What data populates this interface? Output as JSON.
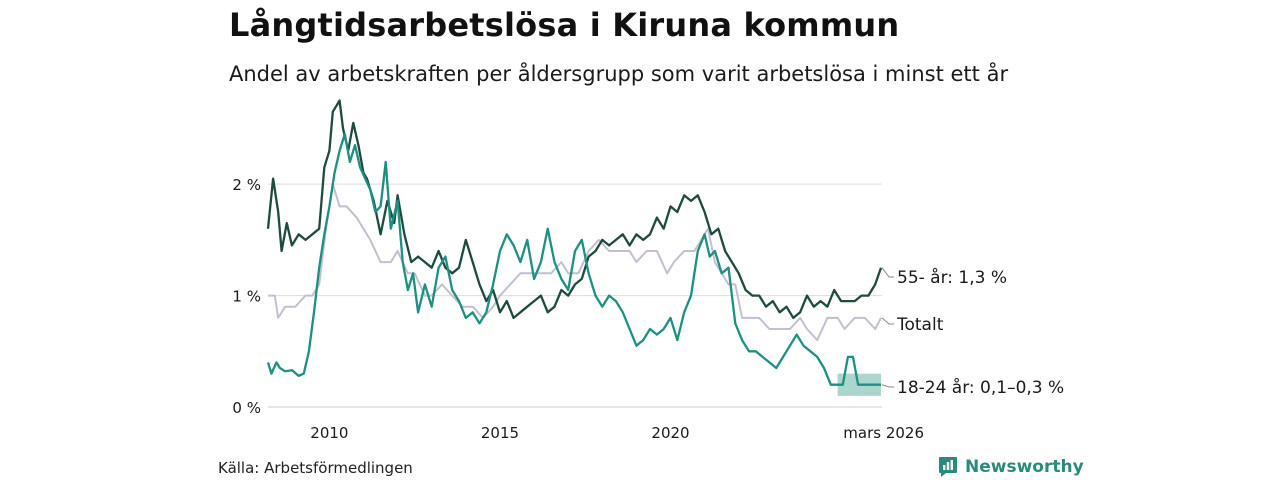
{
  "header": {
    "title": "Långtidsarbetslösa i Kiruna kommun",
    "subtitle": "Andel av arbetskraften per åldersgrupp som varit arbetslösa i minst ett år"
  },
  "footer": {
    "source": "Källa: Arbetsförmedlingen",
    "brand": "Newsworthy"
  },
  "colors": {
    "series_55": "#1f4a40",
    "series_total": "#c4bfd0",
    "series_18_24": "#1d9080",
    "band_18_24": "#9ccfc6",
    "grid": "#dddddd",
    "axis_text": "#1a1a1a",
    "brand": "#2a8a7e"
  },
  "chart_data": {
    "type": "line",
    "title": "Långtidsarbetslösa i Kiruna kommun",
    "xlabel": "",
    "ylabel": "",
    "xlim": [
      2008.2,
      2026.2
    ],
    "ylim": [
      0,
      2.8
    ],
    "y_ticks": [
      {
        "value": 0,
        "label": "0 %"
      },
      {
        "value": 1,
        "label": "1 %"
      },
      {
        "value": 2,
        "label": "2 %"
      }
    ],
    "x_ticks": [
      {
        "value": 2010,
        "label": "2010"
      },
      {
        "value": 2015,
        "label": "2015"
      },
      {
        "value": 2020,
        "label": "2020"
      },
      {
        "value": 2026.17,
        "label": "mars 2026"
      }
    ],
    "grid": true,
    "series": [
      {
        "name": "Totalt",
        "end_label": "Totalt",
        "x": [
          2008.2,
          2008.4,
          2008.5,
          2008.7,
          2009.0,
          2009.3,
          2009.5,
          2009.7,
          2009.9,
          2010.1,
          2010.3,
          2010.5,
          2010.8,
          2011.0,
          2011.2,
          2011.5,
          2011.8,
          2012.0,
          2012.3,
          2012.5,
          2012.8,
          2013.0,
          2013.3,
          2013.6,
          2013.9,
          2014.2,
          2014.5,
          2014.8,
          2015.0,
          2015.3,
          2015.6,
          2015.9,
          2016.2,
          2016.5,
          2016.8,
          2017.0,
          2017.3,
          2017.6,
          2017.9,
          2018.2,
          2018.5,
          2018.8,
          2019.0,
          2019.3,
          2019.6,
          2019.9,
          2020.1,
          2020.4,
          2020.7,
          2020.9,
          2021.1,
          2021.3,
          2021.5,
          2021.7,
          2021.9,
          2022.1,
          2022.3,
          2022.6,
          2022.9,
          2023.2,
          2023.5,
          2023.8,
          2024.0,
          2024.3,
          2024.6,
          2024.9,
          2025.1,
          2025.4,
          2025.7,
          2026.0,
          2026.17
        ],
        "values": [
          1.0,
          1.0,
          0.8,
          0.9,
          0.9,
          1.0,
          1.0,
          1.1,
          1.6,
          2.0,
          1.8,
          1.8,
          1.7,
          1.6,
          1.5,
          1.3,
          1.3,
          1.4,
          1.2,
          1.2,
          1.0,
          1.0,
          1.1,
          1.0,
          0.9,
          0.9,
          0.8,
          0.9,
          1.0,
          1.1,
          1.2,
          1.2,
          1.2,
          1.2,
          1.3,
          1.2,
          1.2,
          1.4,
          1.5,
          1.4,
          1.4,
          1.4,
          1.3,
          1.4,
          1.4,
          1.2,
          1.3,
          1.4,
          1.4,
          1.5,
          1.6,
          1.3,
          1.2,
          1.1,
          1.1,
          0.8,
          0.8,
          0.8,
          0.7,
          0.7,
          0.7,
          0.8,
          0.7,
          0.6,
          0.8,
          0.8,
          0.7,
          0.8,
          0.8,
          0.7,
          0.8
        ]
      },
      {
        "name": "55- år",
        "end_label": "55- år: 1,3 %",
        "x": [
          2008.2,
          2008.35,
          2008.5,
          2008.6,
          2008.75,
          2008.9,
          2009.1,
          2009.3,
          2009.5,
          2009.7,
          2009.85,
          2010.0,
          2010.1,
          2010.3,
          2010.4,
          2010.55,
          2010.7,
          2010.85,
          2011.0,
          2011.1,
          2011.3,
          2011.5,
          2011.7,
          2011.9,
          2012.0,
          2012.2,
          2012.4,
          2012.6,
          2012.8,
          2013.0,
          2013.2,
          2013.4,
          2013.6,
          2013.8,
          2014.0,
          2014.2,
          2014.4,
          2014.6,
          2014.8,
          2015.0,
          2015.2,
          2015.4,
          2015.6,
          2015.8,
          2016.0,
          2016.2,
          2016.4,
          2016.6,
          2016.8,
          2017.0,
          2017.2,
          2017.4,
          2017.6,
          2017.8,
          2018.0,
          2018.2,
          2018.4,
          2018.6,
          2018.8,
          2019.0,
          2019.2,
          2019.4,
          2019.6,
          2019.8,
          2020.0,
          2020.2,
          2020.4,
          2020.6,
          2020.8,
          2021.0,
          2021.2,
          2021.4,
          2021.6,
          2021.8,
          2022.0,
          2022.2,
          2022.4,
          2022.6,
          2022.8,
          2023.0,
          2023.2,
          2023.4,
          2023.6,
          2023.8,
          2024.0,
          2024.2,
          2024.4,
          2024.6,
          2024.8,
          2025.0,
          2025.2,
          2025.4,
          2025.6,
          2025.8,
          2026.0,
          2026.17
        ],
        "values": [
          1.6,
          2.05,
          1.75,
          1.4,
          1.65,
          1.45,
          1.55,
          1.5,
          1.55,
          1.6,
          2.15,
          2.3,
          2.65,
          2.75,
          2.5,
          2.3,
          2.55,
          2.35,
          2.1,
          2.05,
          1.85,
          1.55,
          1.85,
          1.65,
          1.9,
          1.55,
          1.3,
          1.35,
          1.3,
          1.25,
          1.4,
          1.25,
          1.2,
          1.25,
          1.5,
          1.3,
          1.1,
          0.95,
          1.05,
          0.85,
          0.95,
          0.8,
          0.85,
          0.9,
          0.95,
          1.0,
          0.85,
          0.9,
          1.05,
          1.0,
          1.1,
          1.15,
          1.35,
          1.4,
          1.5,
          1.45,
          1.5,
          1.55,
          1.45,
          1.55,
          1.5,
          1.55,
          1.7,
          1.6,
          1.8,
          1.75,
          1.9,
          1.85,
          1.9,
          1.75,
          1.55,
          1.6,
          1.4,
          1.3,
          1.2,
          1.05,
          1.0,
          1.0,
          0.9,
          0.95,
          0.85,
          0.9,
          0.8,
          0.85,
          1.0,
          0.9,
          0.95,
          0.9,
          1.05,
          0.95,
          0.95,
          0.95,
          1.0,
          1.0,
          1.1,
          1.25
        ]
      },
      {
        "name": "18-24 år",
        "end_label": "18-24 år: 0,1–0,3 %",
        "x": [
          2008.2,
          2008.3,
          2008.45,
          2008.55,
          2008.7,
          2008.9,
          2009.1,
          2009.25,
          2009.4,
          2009.55,
          2009.7,
          2009.85,
          2010.0,
          2010.15,
          2010.3,
          2010.45,
          2010.6,
          2010.75,
          2010.9,
          2011.05,
          2011.2,
          2011.35,
          2011.5,
          2011.65,
          2011.8,
          2012.0,
          2012.15,
          2012.3,
          2012.45,
          2012.6,
          2012.8,
          2013.0,
          2013.2,
          2013.4,
          2013.6,
          2013.8,
          2014.0,
          2014.2,
          2014.4,
          2014.6,
          2014.8,
          2015.0,
          2015.2,
          2015.4,
          2015.6,
          2015.8,
          2016.0,
          2016.2,
          2016.4,
          2016.6,
          2016.8,
          2017.0,
          2017.2,
          2017.4,
          2017.6,
          2017.8,
          2018.0,
          2018.2,
          2018.4,
          2018.6,
          2018.8,
          2019.0,
          2019.2,
          2019.4,
          2019.6,
          2019.8,
          2020.0,
          2020.2,
          2020.4,
          2020.6,
          2020.8,
          2021.0,
          2021.15,
          2021.3,
          2021.5,
          2021.7,
          2021.9,
          2022.1,
          2022.3,
          2022.5,
          2022.7,
          2022.9,
          2023.1,
          2023.3,
          2023.5,
          2023.7,
          2023.9,
          2024.1,
          2024.3,
          2024.5,
          2024.7,
          2024.9,
          2025.05,
          2025.2,
          2025.35,
          2025.5,
          2025.6,
          2025.75,
          2025.9,
          2026.17
        ],
        "values": [
          0.4,
          0.3,
          0.4,
          0.35,
          0.32,
          0.33,
          0.28,
          0.3,
          0.5,
          0.85,
          1.25,
          1.55,
          1.8,
          2.1,
          2.3,
          2.45,
          2.2,
          2.35,
          2.15,
          2.05,
          1.95,
          1.75,
          1.8,
          2.2,
          1.6,
          1.85,
          1.3,
          1.05,
          1.2,
          0.85,
          1.1,
          0.9,
          1.25,
          1.35,
          1.05,
          0.95,
          0.8,
          0.85,
          0.75,
          0.85,
          1.1,
          1.4,
          1.55,
          1.45,
          1.3,
          1.5,
          1.15,
          1.3,
          1.6,
          1.3,
          1.15,
          1.05,
          1.4,
          1.5,
          1.2,
          1.0,
          0.9,
          1.0,
          0.95,
          0.85,
          0.7,
          0.55,
          0.6,
          0.7,
          0.65,
          0.7,
          0.8,
          0.6,
          0.85,
          1.0,
          1.4,
          1.55,
          1.35,
          1.4,
          1.2,
          1.25,
          0.75,
          0.6,
          0.5,
          0.5,
          0.45,
          0.4,
          0.35,
          0.45,
          0.55,
          0.65,
          0.55,
          0.5,
          0.45,
          0.35,
          0.2,
          0.2,
          0.2,
          0.45,
          0.45,
          0.2,
          0.2,
          0.2,
          0.2,
          0.2
        ],
        "band": {
          "x": [
            2024.9,
            2026.17
          ],
          "low": [
            0.1,
            0.1
          ],
          "high": [
            0.3,
            0.3
          ]
        }
      }
    ]
  }
}
